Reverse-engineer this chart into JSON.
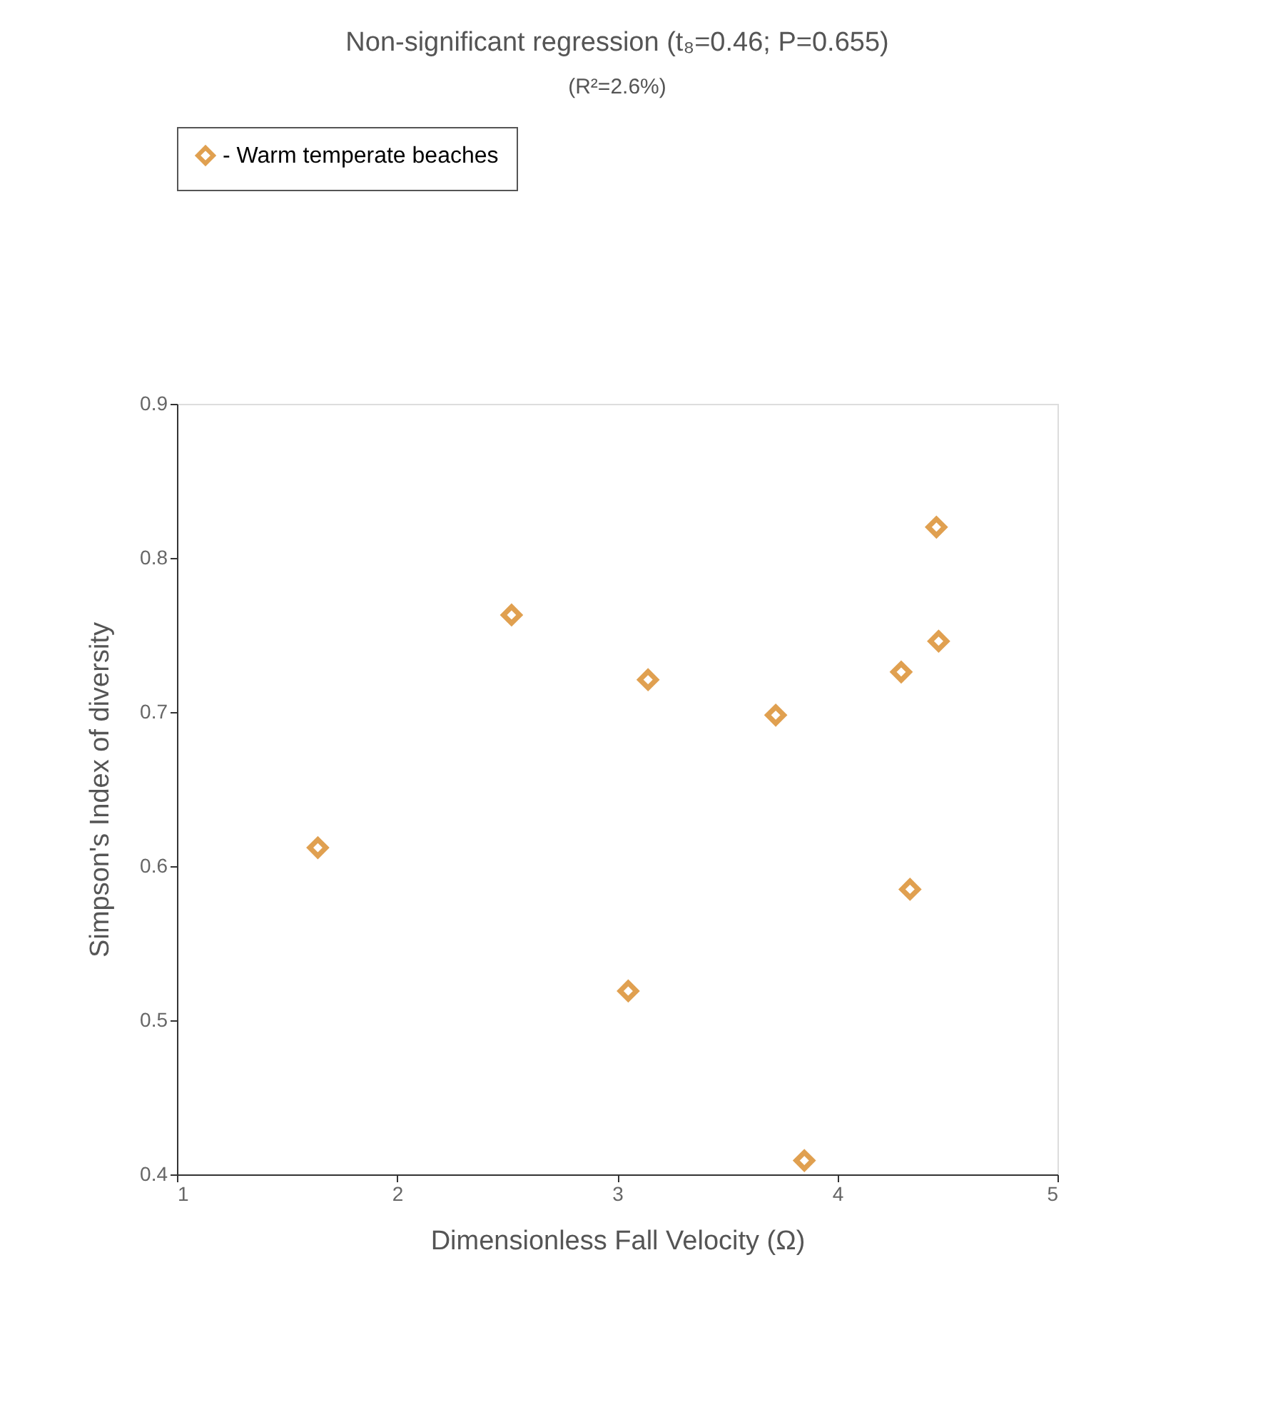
{
  "chart_data": {
    "type": "scatter",
    "title": "Non-significant regression (t₈=0.46; P=0.655)",
    "subtitle": "(R²=2.6%)",
    "xlabel": "Dimensionless Fall Velocity (Ω)",
    "ylabel": "Simpson's Index of diversity",
    "x": [
      1.64,
      2.52,
      3.14,
      3.05,
      3.72,
      3.85,
      4.29,
      4.33,
      4.45,
      4.46
    ],
    "series": [
      {
        "name": "- Warm temperate beaches",
        "color": "#e0a050",
        "values": [
          0.612,
          0.763,
          0.721,
          0.519,
          0.698,
          0.409,
          0.726,
          0.585,
          0.82,
          0.746
        ]
      }
    ],
    "xlim": [
      1,
      5
    ],
    "xticks": [
      1,
      2,
      3,
      4,
      5
    ],
    "ylim": [
      0.4,
      0.9
    ],
    "yticks": [
      0.4,
      0.5,
      0.6,
      0.7,
      0.8,
      0.9
    ],
    "grid": false,
    "legend": "top",
    "marker": "diamond"
  }
}
